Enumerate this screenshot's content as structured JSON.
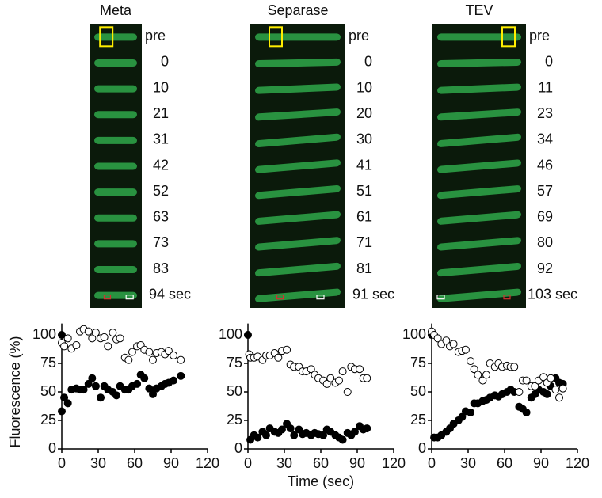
{
  "panels": [
    {
      "title": "Meta",
      "frames": [
        "pre",
        "0",
        "10",
        "21",
        "31",
        "42",
        "52",
        "63",
        "73",
        "83",
        "94 sec"
      ]
    },
    {
      "title": "Separase",
      "frames": [
        "pre",
        "0",
        "10",
        "20",
        "30",
        "41",
        "51",
        "61",
        "71",
        "81",
        "91 sec"
      ]
    },
    {
      "title": "TEV",
      "frames": [
        "pre",
        "0",
        "11",
        "23",
        "34",
        "46",
        "57",
        "69",
        "80",
        "92",
        "103 sec"
      ]
    }
  ],
  "chart_data": [
    {
      "type": "scatter",
      "ylabel": "Fluorescence (%)",
      "xlim": [
        0,
        120
      ],
      "xticks": [
        0,
        30,
        60,
        90,
        120
      ],
      "ylim": [
        0,
        110
      ],
      "yticks": [
        0,
        25,
        50,
        75,
        100
      ],
      "series": [
        {
          "marker": "filled",
          "color": "#000000",
          "x": [
            0,
            0,
            2,
            5,
            8,
            12,
            15,
            18,
            22,
            25,
            28,
            32,
            35,
            38,
            42,
            45,
            48,
            52,
            55,
            58,
            62,
            65,
            68,
            72,
            75,
            78,
            82,
            85,
            88,
            92,
            98
          ],
          "values": [
            100,
            33,
            45,
            40,
            52,
            53,
            52,
            52,
            57,
            62,
            55,
            45,
            55,
            52,
            50,
            47,
            55,
            52,
            52,
            55,
            57,
            65,
            62,
            53,
            48,
            53,
            55,
            57,
            58,
            60,
            64
          ]
        },
        {
          "marker": "open",
          "color": "#000000",
          "x": [
            0,
            2,
            5,
            8,
            12,
            15,
            18,
            22,
            25,
            28,
            32,
            35,
            38,
            42,
            45,
            48,
            52,
            55,
            58,
            62,
            65,
            68,
            72,
            75,
            78,
            82,
            85,
            88,
            92,
            98
          ],
          "values": [
            93,
            90,
            97,
            88,
            91,
            103,
            105,
            103,
            97,
            102,
            97,
            98,
            90,
            102,
            96,
            97,
            80,
            78,
            85,
            90,
            91,
            87,
            85,
            78,
            84,
            85,
            83,
            86,
            82,
            78
          ]
        }
      ]
    },
    {
      "type": "scatter",
      "xlabel": "Time (sec)",
      "xlim": [
        0,
        120
      ],
      "xticks": [
        0,
        30,
        60,
        90,
        120
      ],
      "ylim": [
        0,
        110
      ],
      "yticks": [
        0,
        25,
        50,
        75,
        100
      ],
      "series": [
        {
          "marker": "filled",
          "color": "#000000",
          "x": [
            0,
            2,
            5,
            8,
            12,
            15,
            18,
            22,
            25,
            28,
            32,
            35,
            38,
            42,
            45,
            48,
            52,
            55,
            58,
            62,
            65,
            68,
            72,
            75,
            78,
            82,
            85,
            88,
            92,
            95,
            98
          ],
          "values": [
            100,
            8,
            12,
            10,
            15,
            12,
            18,
            15,
            14,
            17,
            22,
            18,
            12,
            17,
            13,
            14,
            12,
            14,
            13,
            12,
            17,
            15,
            12,
            10,
            8,
            14,
            12,
            15,
            20,
            17,
            18
          ]
        },
        {
          "marker": "open",
          "color": "#000000",
          "x": [
            1,
            2,
            5,
            8,
            12,
            15,
            18,
            22,
            25,
            28,
            32,
            35,
            38,
            42,
            45,
            48,
            52,
            55,
            58,
            62,
            65,
            68,
            72,
            75,
            78,
            82,
            85,
            88,
            92,
            95,
            98
          ],
          "values": [
            83,
            80,
            80,
            81,
            78,
            82,
            82,
            84,
            80,
            86,
            87,
            74,
            72,
            72,
            68,
            68,
            70,
            65,
            62,
            60,
            57,
            62,
            58,
            60,
            68,
            50,
            72,
            70,
            70,
            62,
            62
          ]
        }
      ]
    },
    {
      "type": "scatter",
      "xlim": [
        0,
        120
      ],
      "xticks": [
        0,
        30,
        60,
        90,
        120
      ],
      "ylim": [
        0,
        110
      ],
      "yticks": [
        0,
        25,
        50,
        75,
        100
      ],
      "series": [
        {
          "marker": "filled",
          "color": "#000000",
          "x": [
            0,
            2,
            5,
            8,
            12,
            15,
            18,
            22,
            25,
            28,
            32,
            35,
            38,
            42,
            45,
            48,
            52,
            55,
            58,
            62,
            65,
            68,
            72,
            75,
            78,
            82,
            85,
            88,
            92,
            95,
            98,
            102,
            105,
            108
          ],
          "values": [
            100,
            10,
            10,
            12,
            15,
            18,
            22,
            25,
            28,
            33,
            32,
            40,
            40,
            42,
            43,
            45,
            47,
            46,
            48,
            50,
            52,
            50,
            37,
            35,
            32,
            45,
            48,
            52,
            50,
            48,
            55,
            62,
            58,
            57
          ]
        },
        {
          "marker": "open",
          "color": "#000000",
          "x": [
            0,
            2,
            5,
            8,
            12,
            15,
            18,
            22,
            25,
            28,
            32,
            35,
            38,
            42,
            45,
            48,
            52,
            55,
            58,
            62,
            65,
            68,
            72,
            75,
            78,
            82,
            85,
            88,
            92,
            95,
            98,
            102,
            105,
            108
          ],
          "values": [
            103,
            100,
            97,
            92,
            95,
            90,
            92,
            85,
            86,
            87,
            77,
            70,
            65,
            60,
            65,
            75,
            72,
            75,
            72,
            73,
            72,
            72,
            50,
            60,
            60,
            55,
            55,
            60,
            63,
            58,
            62,
            52,
            45,
            53
          ]
        }
      ]
    }
  ]
}
